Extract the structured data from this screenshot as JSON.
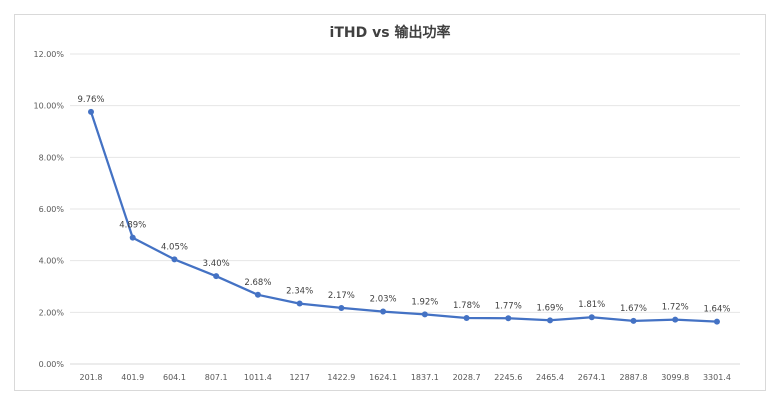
{
  "chart_data": {
    "type": "line",
    "title": "iTHD vs 输出功率",
    "xlabel": "",
    "ylabel": "",
    "categories": [
      "201.8",
      "401.9",
      "604.1",
      "807.1",
      "1011.4",
      "1217",
      "1422.9",
      "1624.1",
      "1837.1",
      "2028.7",
      "2245.6",
      "2465.4",
      "2674.1",
      "2887.8",
      "3099.8",
      "3301.4"
    ],
    "series": [
      {
        "values": [
          9.76,
          4.89,
          4.05,
          3.4,
          2.68,
          2.34,
          2.17,
          2.03,
          1.92,
          1.78,
          1.77,
          1.69,
          1.81,
          1.67,
          1.72,
          1.64
        ],
        "labels": [
          "9.76%",
          "4.89%",
          "4.05%",
          "3.40%",
          "2.68%",
          "2.34%",
          "2.17%",
          "2.03%",
          "1.92%",
          "1.78%",
          "1.77%",
          "1.69%",
          "1.81%",
          "1.67%",
          "1.72%",
          "1.64%"
        ],
        "color": "#4472c4"
      }
    ],
    "yticks": [
      "0.00%",
      "2.00%",
      "4.00%",
      "6.00%",
      "8.00%",
      "10.00%",
      "12.00%"
    ],
    "ylim": [
      0,
      12
    ],
    "grid": true,
    "legend": "none"
  }
}
